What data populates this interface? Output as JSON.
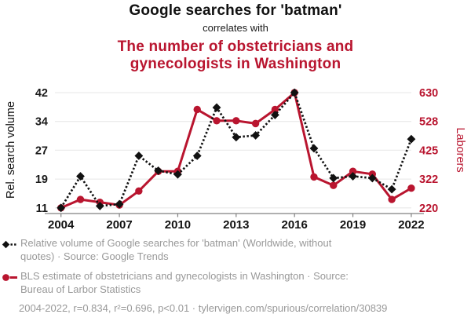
{
  "header": {
    "title": "Google searches for 'batman'",
    "connector": "correlates with",
    "subtitle": "The number of obstetricians and gynecologists in Washington",
    "subtitle_lines": [
      "The number of obstetricians and",
      "gynecologists in Washington"
    ]
  },
  "chart_data": {
    "type": "line",
    "x": [
      2004,
      2005,
      2006,
      2007,
      2008,
      2009,
      2010,
      2011,
      2012,
      2013,
      2014,
      2015,
      2016,
      2017,
      2018,
      2019,
      2020,
      2021,
      2022
    ],
    "x_tick_years": [
      2004,
      2007,
      2010,
      2013,
      2016,
      2019,
      2022
    ],
    "series": [
      {
        "name": "Relative volume of Google searches for 'batman' (Worldwide, without quotes)",
        "source": "Google Trends",
        "axis": "left",
        "color": "#111111",
        "marker": "diamond",
        "line_style": "dotted",
        "values": [
          11,
          19.5,
          11.5,
          12,
          25,
          21,
          20,
          25,
          38,
          30,
          30.5,
          36,
          42,
          27,
          19,
          19.5,
          19,
          16,
          29.5
        ]
      },
      {
        "name": "BLS estimate of obstetricians and gynecologists in Washington",
        "source": "Bureau of Larbor Statistics",
        "axis": "right",
        "color": "#b9152f",
        "marker": "circle",
        "line_style": "solid",
        "values": [
          220,
          250,
          240,
          230,
          280,
          350,
          350,
          570,
          530,
          530,
          520,
          570,
          630,
          330,
          300,
          350,
          340,
          250,
          290
        ]
      }
    ],
    "left_axis": {
      "label": "Rel. search volume",
      "min": 11,
      "max": 42,
      "tick_labels": [
        "42",
        "34",
        "27",
        "19",
        "11"
      ]
    },
    "right_axis": {
      "label": "Laborers",
      "min": 220,
      "max": 630,
      "tick_labels": [
        "630",
        "528",
        "425",
        "322",
        "220"
      ]
    },
    "grid": true,
    "legend_position": "bottom"
  },
  "legend": {
    "items": [
      {
        "icon": "black-diamond-dotted-line",
        "lines": [
          "Relative volume of Google searches for 'batman' (Worldwide, without",
          "quotes) · Source: Google Trends"
        ]
      },
      {
        "icon": "red-circle-solid-line",
        "lines": [
          "BLS estimate of obstetricians and gynecologists in Washington · Source:",
          "Bureau of Larbor Statistics"
        ]
      }
    ]
  },
  "footer": {
    "stats": "2004-2022, r=0.834, r²=0.696, p<0.01 · tylervigen.com/spurious/correlation/30839"
  },
  "colors": {
    "accent_red": "#b9152f",
    "series_black": "#111111",
    "legend_gray": "#999999",
    "tick_label_color": "#1a1a1a",
    "gridline": "#ececec",
    "axis_line": "#808080"
  }
}
